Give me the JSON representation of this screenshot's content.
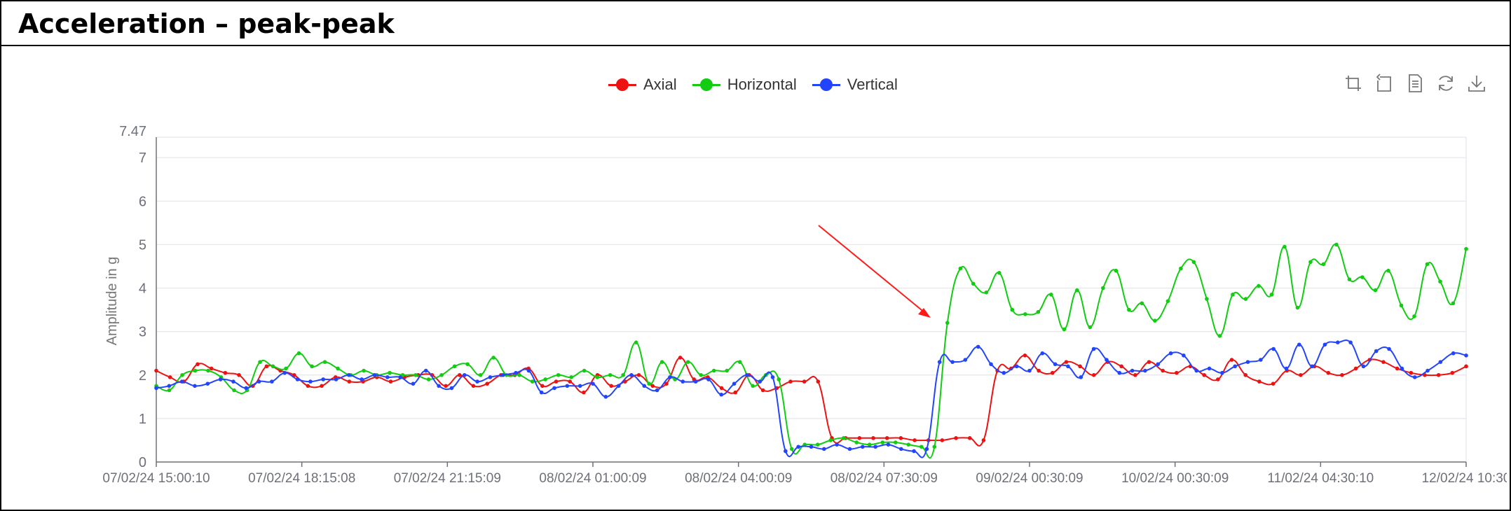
{
  "title": "Acceleration – peak-peak",
  "toolbox": [
    "zoom-icon",
    "zoom-reset-icon",
    "data-view-icon",
    "restore-icon",
    "save-image-icon"
  ],
  "chart_data": {
    "type": "line",
    "title": "",
    "xlabel": "",
    "ylabel": "Amplitude in g",
    "ylim": [
      0,
      7.47
    ],
    "ymax_label": "7.47",
    "yticks": [
      "0",
      "1",
      "2",
      "3",
      "4",
      "5",
      "6",
      "7"
    ],
    "xticks": [
      "07/02/24 15:00:10",
      "07/02/24 18:15:08",
      "07/02/24 21:15:09",
      "08/02/24 01:00:09",
      "08/02/24 04:00:09",
      "08/02/24 07:30:09",
      "09/02/24 00:30:09",
      "10/02/24 00:30:09",
      "11/02/24 04:30:10",
      "12/02/24 10:30"
    ],
    "grid": true,
    "legend_position": "top-center",
    "annotation": "red arrow pointing to step increase",
    "series": [
      {
        "name": "Axial",
        "color": "#ee1111",
        "values": [
          2.1,
          1.95,
          1.85,
          2.25,
          2.15,
          2.05,
          2.0,
          1.75,
          2.2,
          2.1,
          2.0,
          1.75,
          1.75,
          1.95,
          1.85,
          1.85,
          1.95,
          1.85,
          1.95,
          2.0,
          2.0,
          1.75,
          2.0,
          1.75,
          1.8,
          2.0,
          2.0,
          2.15,
          1.75,
          1.85,
          1.85,
          1.6,
          2.0,
          1.75,
          1.85,
          2.0,
          1.75,
          1.8,
          2.4,
          1.9,
          1.95,
          1.7,
          1.6,
          2.0,
          1.65,
          1.7,
          1.85,
          1.85,
          1.85,
          0.55,
          0.55,
          0.55,
          0.55,
          0.55,
          0.55,
          0.5,
          0.5,
          0.5,
          0.55,
          0.55,
          0.5,
          2.1,
          2.15,
          2.45,
          2.1,
          2.05,
          2.3,
          2.2,
          2.0,
          2.3,
          2.2,
          2.0,
          2.3,
          2.1,
          2.05,
          2.2,
          2.0,
          1.9,
          2.35,
          2.0,
          1.85,
          1.8,
          2.1,
          2.0,
          2.2,
          2.05,
          2.0,
          2.15,
          2.35,
          2.3,
          2.15,
          2.05,
          2.0,
          2.0,
          2.05,
          2.2
        ]
      },
      {
        "name": "Horizontal",
        "color": "#11cc11",
        "values": [
          1.75,
          1.65,
          2.0,
          2.1,
          2.1,
          1.95,
          1.65,
          1.65,
          2.3,
          2.2,
          2.15,
          2.5,
          2.2,
          2.3,
          2.15,
          2.0,
          2.1,
          2.0,
          2.05,
          2.0,
          2.0,
          1.9,
          2.0,
          2.2,
          2.25,
          2.0,
          2.4,
          2.0,
          2.0,
          1.85,
          1.9,
          2.0,
          1.95,
          2.1,
          1.95,
          2.0,
          2.0,
          2.75,
          1.8,
          2.3,
          1.9,
          2.3,
          2.0,
          2.1,
          2.1,
          2.3,
          1.75,
          2.0,
          1.9,
          0.3,
          0.4,
          0.4,
          0.5,
          0.55,
          0.45,
          0.4,
          0.45,
          0.45,
          0.4,
          0.35,
          0.35,
          3.2,
          4.45,
          4.1,
          3.9,
          4.35,
          3.5,
          3.4,
          3.45,
          3.85,
          3.05,
          3.95,
          3.1,
          4.0,
          4.4,
          3.5,
          3.65,
          3.25,
          3.7,
          4.45,
          4.6,
          3.75,
          2.9,
          3.85,
          3.75,
          4.05,
          3.85,
          4.95,
          3.55,
          4.6,
          4.55,
          5.0,
          4.2,
          4.25,
          3.95,
          4.4,
          3.6,
          3.35,
          4.55,
          4.15,
          3.65,
          4.9
        ]
      },
      {
        "name": "Vertical",
        "color": "#2244ff",
        "values": [
          1.7,
          1.75,
          1.85,
          1.75,
          1.8,
          1.9,
          1.85,
          1.7,
          1.85,
          1.85,
          2.05,
          1.9,
          1.85,
          1.9,
          1.9,
          2.0,
          1.9,
          2.0,
          1.95,
          1.95,
          1.8,
          2.1,
          1.75,
          1.7,
          2.0,
          1.85,
          1.95,
          2.0,
          2.05,
          2.1,
          1.6,
          1.7,
          1.75,
          1.75,
          1.8,
          1.5,
          1.75,
          2.0,
          1.75,
          1.65,
          1.95,
          1.85,
          1.85,
          1.9,
          1.55,
          1.8,
          2.0,
          1.85,
          1.95,
          0.25,
          0.35,
          0.35,
          0.3,
          0.4,
          0.3,
          0.35,
          0.35,
          0.4,
          0.3,
          0.25,
          0.3,
          2.3,
          2.3,
          2.35,
          2.65,
          2.25,
          2.05,
          2.2,
          2.1,
          2.5,
          2.25,
          2.2,
          1.95,
          2.6,
          2.35,
          2.05,
          2.1,
          2.1,
          2.25,
          2.5,
          2.45,
          2.1,
          2.15,
          2.05,
          2.2,
          2.3,
          2.35,
          2.6,
          2.15,
          2.7,
          2.2,
          2.7,
          2.75,
          2.75,
          2.2,
          2.55,
          2.6,
          2.15,
          1.95,
          2.1,
          2.3,
          2.5,
          2.45
        ]
      }
    ]
  }
}
